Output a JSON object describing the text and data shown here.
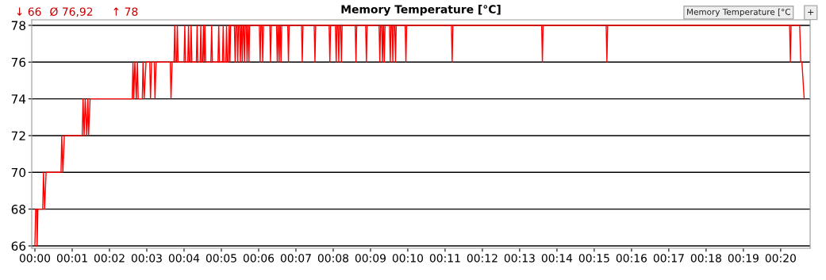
{
  "chart_data": {
    "type": "line",
    "title": "Memory Temperature [°C]",
    "annotations": [
      "↓ 66",
      "Ø 76,92",
      "↑ 78",
      "Memory Temperature [°C",
      "+"
    ],
    "x": [
      0,
      0.02,
      0.05,
      0.06,
      0.08,
      0.21,
      0.23,
      0.26,
      0.3,
      0.7,
      0.72,
      0.75,
      0.79,
      1.27,
      1.29,
      1.32,
      1.35,
      1.39,
      1.42,
      1.44,
      1.48,
      2.61,
      2.63,
      2.65,
      2.68,
      2.72,
      2.75,
      2.77,
      2.88,
      2.9,
      2.93,
      2.98,
      3.08,
      3.1,
      3.13,
      3.2,
      3.22,
      3.25,
      3.63,
      3.65,
      3.68,
      3.73,
      3.75,
      3.77,
      3.8,
      3.82,
      3.84,
      4.0,
      4.02,
      4.04,
      4.1,
      4.12,
      4.14,
      4.17,
      4.19,
      4.21,
      4.33,
      4.35,
      4.37,
      4.43,
      4.45,
      4.47,
      4.5,
      4.52,
      4.54,
      4.56,
      4.58,
      4.72,
      4.74,
      4.76,
      4.91,
      4.93,
      4.95,
      5.03,
      5.05,
      5.07,
      5.12,
      5.14,
      5.16,
      5.19,
      5.21,
      5.23,
      5.25,
      5.35,
      5.37,
      5.39,
      5.42,
      5.44,
      5.46,
      5.49,
      5.51,
      5.53,
      5.54,
      5.56,
      5.58,
      5.6,
      5.62,
      5.64,
      5.67,
      5.69,
      5.71,
      5.72,
      5.74,
      5.76,
      6.02,
      6.04,
      6.06,
      6.09,
      6.11,
      6.13,
      6.3,
      6.32,
      6.34,
      6.48,
      6.5,
      6.52,
      6.53,
      6.55,
      6.57,
      6.58,
      6.6,
      6.62,
      6.78,
      6.8,
      6.82,
      7.15,
      7.17,
      7.19,
      7.49,
      7.51,
      7.53,
      7.89,
      7.91,
      7.93,
      8.06,
      8.08,
      8.1,
      8.13,
      8.15,
      8.17,
      8.2,
      8.22,
      8.24,
      8.59,
      8.61,
      8.63,
      8.87,
      8.89,
      8.91,
      9.23,
      9.25,
      9.27,
      9.3,
      9.32,
      9.34,
      9.35,
      9.37,
      9.39,
      9.51,
      9.53,
      9.55,
      9.58,
      9.6,
      9.62,
      9.65,
      9.67,
      9.69,
      9.93,
      9.95,
      9.97,
      11.17,
      11.19,
      11.21,
      13.59,
      13.61,
      13.63,
      15.32,
      15.34,
      15.36,
      20.24,
      20.26,
      20.28,
      20.51,
      20.54,
      20.57,
      20.63
    ],
    "values": [
      66,
      68,
      68,
      66,
      68,
      68,
      70,
      68,
      70,
      70,
      72,
      70,
      72,
      72,
      74,
      72,
      74,
      72,
      74,
      72,
      74,
      74,
      76,
      74,
      76,
      74,
      76,
      74,
      74,
      76,
      74,
      76,
      76,
      74,
      76,
      76,
      74,
      76,
      76,
      74,
      76,
      76,
      78,
      76,
      76,
      78,
      76,
      76,
      78,
      76,
      76,
      78,
      76,
      76,
      78,
      76,
      76,
      78,
      76,
      76,
      78,
      76,
      76,
      78,
      76,
      78,
      76,
      76,
      78,
      76,
      76,
      78,
      76,
      76,
      78,
      76,
      76,
      78,
      76,
      76,
      78,
      76,
      78,
      78,
      76,
      78,
      78,
      76,
      78,
      78,
      76,
      78,
      78,
      76,
      78,
      78,
      76,
      78,
      78,
      76,
      78,
      78,
      76,
      78,
      78,
      76,
      78,
      78,
      76,
      78,
      78,
      76,
      78,
      78,
      76,
      78,
      78,
      76,
      78,
      78,
      76,
      78,
      78,
      76,
      78,
      78,
      76,
      78,
      78,
      76,
      78,
      78,
      76,
      78,
      78,
      76,
      78,
      78,
      76,
      78,
      78,
      76,
      78,
      78,
      76,
      78,
      78,
      76,
      78,
      78,
      76,
      78,
      78,
      76,
      78,
      78,
      76,
      78,
      78,
      76,
      78,
      78,
      76,
      78,
      78,
      76,
      78,
      78,
      76,
      78,
      78,
      76,
      78,
      78,
      76,
      78,
      78,
      76,
      78,
      78,
      76,
      78,
      78,
      76,
      76,
      74
    ],
    "color": "#ff0000",
    "xlim": [
      -0.085,
      20.79
    ],
    "ylim": [
      65.87,
      78.3
    ],
    "xticks": [
      {
        "value": 0,
        "label": "00:00"
      },
      {
        "value": 1,
        "label": "00:01"
      },
      {
        "value": 2,
        "label": "00:02"
      },
      {
        "value": 3,
        "label": "00:03"
      },
      {
        "value": 4,
        "label": "00:04"
      },
      {
        "value": 5,
        "label": "00:05"
      },
      {
        "value": 6,
        "label": "00:06"
      },
      {
        "value": 7,
        "label": "00:07"
      },
      {
        "value": 8,
        "label": "00:08"
      },
      {
        "value": 9,
        "label": "00:09"
      },
      {
        "value": 10,
        "label": "00:10"
      },
      {
        "value": 11,
        "label": "00:11"
      },
      {
        "value": 12,
        "label": "00:12"
      },
      {
        "value": 13,
        "label": "00:13"
      },
      {
        "value": 14,
        "label": "00:14"
      },
      {
        "value": 15,
        "label": "00:15"
      },
      {
        "value": 16,
        "label": "00:16"
      },
      {
        "value": 17,
        "label": "00:17"
      },
      {
        "value": 18,
        "label": "00:18"
      },
      {
        "value": 19,
        "label": "00:19"
      },
      {
        "value": 20,
        "label": "00:20"
      }
    ],
    "yticks": [
      66,
      68,
      70,
      72,
      74,
      76,
      78
    ],
    "grid": "y",
    "legend": false,
    "marker": "none",
    "line_style": "solid"
  }
}
